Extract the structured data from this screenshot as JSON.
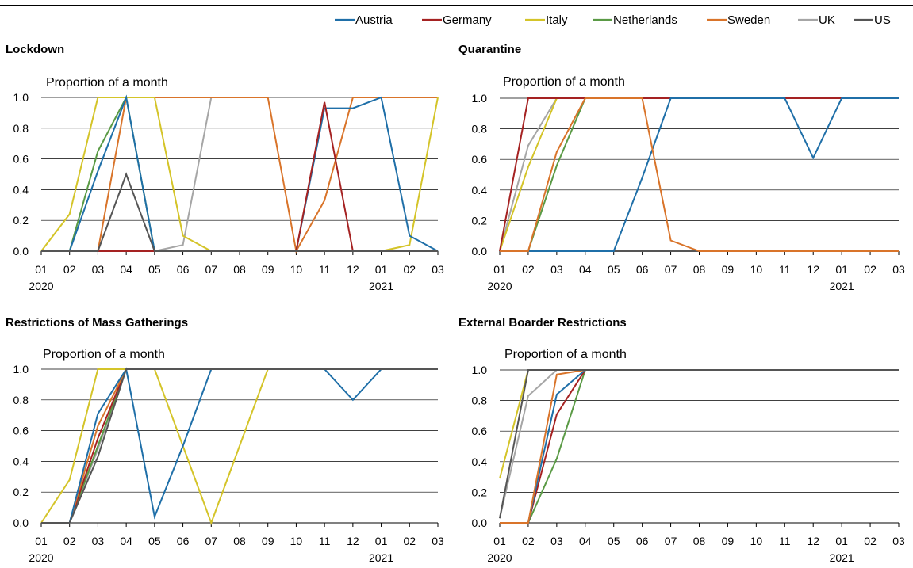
{
  "legend": [
    {
      "name": "Austria",
      "color": "#1f6fa8"
    },
    {
      "name": "Germany",
      "color": "#a52222"
    },
    {
      "name": "Italy",
      "color": "#d4c429"
    },
    {
      "name": "Netherlands",
      "color": "#5a9a45"
    },
    {
      "name": "Sweden",
      "color": "#d9742a"
    },
    {
      "name": "UK",
      "color": "#a6a6a6"
    },
    {
      "name": "US",
      "color": "#555555"
    }
  ],
  "chart_data": [
    {
      "type": "line",
      "title": "Lockdown",
      "ylabel": "Proportion  of a month",
      "categories": [
        "01",
        "02",
        "03",
        "04",
        "05",
        "06",
        "07",
        "08",
        "09",
        "10",
        "11",
        "12",
        "01",
        "02",
        "03"
      ],
      "year_labels": [
        {
          "index": 0,
          "label": "2020"
        },
        {
          "index": 12,
          "label": "2021"
        }
      ],
      "ylim": [
        0,
        1
      ],
      "yticks": [
        "0.0",
        "0.2",
        "0.4",
        "0.6",
        "0.8",
        "1.0"
      ],
      "series": [
        {
          "name": "UK",
          "values": [
            0,
            0,
            0,
            0,
            0,
            0.04,
            1,
            1,
            1,
            1,
            1,
            1,
            1,
            1,
            1
          ]
        },
        {
          "name": "Sweden",
          "values": [
            0,
            0,
            0,
            1,
            1,
            1,
            1,
            1,
            1,
            0,
            0.33,
            1,
            1,
            1,
            1
          ]
        },
        {
          "name": "Italy",
          "values": [
            0,
            0.24,
            1,
            1,
            1,
            0.1,
            0,
            0,
            0,
            0,
            0,
            0,
            0,
            0.04,
            1
          ]
        },
        {
          "name": "Netherlands",
          "values": [
            0,
            0,
            0.65,
            1,
            0,
            0,
            0,
            0,
            0,
            0,
            0,
            0,
            0,
            0,
            0
          ]
        },
        {
          "name": "Austria",
          "values": [
            0,
            0,
            0.52,
            1,
            0,
            0,
            0,
            0,
            0,
            0,
            0.93,
            0.93,
            1,
            0.1,
            0
          ]
        },
        {
          "name": "Germany",
          "values": [
            0,
            0,
            0,
            0,
            0,
            0,
            0,
            0,
            0,
            0,
            0.97,
            0,
            0,
            0,
            0
          ]
        },
        {
          "name": "US",
          "values": [
            0,
            0,
            0,
            0.5,
            0,
            0,
            0,
            0,
            0,
            0,
            0,
            0,
            0,
            0,
            0
          ]
        }
      ]
    },
    {
      "type": "line",
      "title": "Quarantine",
      "ylabel": "Proportion of a month",
      "categories": [
        "01",
        "02",
        "03",
        "04",
        "05",
        "06",
        "07",
        "08",
        "09",
        "10",
        "11",
        "12",
        "01",
        "02",
        "03"
      ],
      "year_labels": [
        {
          "index": 0,
          "label": "2020"
        },
        {
          "index": 12,
          "label": "2021"
        }
      ],
      "ylim": [
        0,
        1
      ],
      "yticks": [
        "0.0",
        "0.2",
        "0.4",
        "0.6",
        "0.8",
        "1.0"
      ],
      "series": [
        {
          "name": "US",
          "values": [
            0,
            0,
            0,
            0,
            0,
            0,
            0,
            0,
            0,
            0,
            0,
            0,
            0,
            0,
            0
          ]
        },
        {
          "name": "UK",
          "values": [
            0,
            0.69,
            1,
            1,
            1,
            1,
            1,
            1,
            1,
            1,
            1,
            1,
            1,
            1,
            1
          ]
        },
        {
          "name": "Italy",
          "values": [
            0,
            0.55,
            1,
            1,
            1,
            1,
            1,
            1,
            1,
            1,
            1,
            1,
            1,
            1,
            1
          ]
        },
        {
          "name": "Netherlands",
          "values": [
            0,
            0,
            0.56,
            1,
            1,
            1,
            1,
            1,
            1,
            1,
            1,
            1,
            1,
            1,
            1
          ]
        },
        {
          "name": "Germany",
          "values": [
            0,
            1,
            1,
            1,
            1,
            1,
            1,
            1,
            1,
            1,
            1,
            1,
            1,
            1,
            1
          ]
        },
        {
          "name": "Austria",
          "values": [
            0,
            0,
            0,
            0,
            0,
            0.48,
            1,
            1,
            1,
            1,
            1,
            0.61,
            1,
            1,
            1
          ]
        },
        {
          "name": "Sweden",
          "values": [
            0,
            0,
            0.65,
            1,
            1,
            1,
            0.07,
            0,
            0,
            0,
            0,
            0,
            0,
            0,
            0
          ]
        }
      ]
    },
    {
      "type": "line",
      "title": "Restrictions of Mass Gatherings",
      "ylabel": "Proportion of a month",
      "categories": [
        "01",
        "02",
        "03",
        "04",
        "05",
        "06",
        "07",
        "08",
        "09",
        "10",
        "11",
        "12",
        "01",
        "02",
        "03"
      ],
      "year_labels": [
        {
          "index": 0,
          "label": "2020"
        },
        {
          "index": 12,
          "label": "2021"
        }
      ],
      "ylim": [
        0,
        1
      ],
      "yticks": [
        "0.0",
        "0.2",
        "0.4",
        "0.6",
        "0.8",
        "1.0"
      ],
      "series": [
        {
          "name": "UK",
          "values": [
            0,
            0,
            0.48,
            1,
            1,
            1,
            1,
            1,
            1,
            1,
            1,
            1,
            1,
            1,
            1
          ]
        },
        {
          "name": "Netherlands",
          "values": [
            0,
            0,
            0.5,
            1,
            1,
            1,
            1,
            1,
            1,
            1,
            1,
            1,
            1,
            1,
            1
          ]
        },
        {
          "name": "Germany",
          "values": [
            0,
            0,
            0.55,
            1,
            1,
            1,
            1,
            1,
            1,
            1,
            1,
            1,
            1,
            1,
            1
          ]
        },
        {
          "name": "Sweden",
          "values": [
            0,
            0,
            0.63,
            1,
            1,
            1,
            1,
            1,
            1,
            1,
            1,
            1,
            1,
            1,
            1
          ]
        },
        {
          "name": "Italy",
          "values": [
            0,
            0.28,
            1,
            1,
            1,
            0.5,
            0,
            0.5,
            1,
            1,
            1,
            1,
            1,
            1,
            1
          ]
        },
        {
          "name": "Austria",
          "values": [
            0,
            0,
            0.71,
            1,
            0.04,
            0.5,
            1,
            1,
            1,
            1,
            1,
            0.8,
            1,
            1,
            1
          ]
        },
        {
          "name": "US",
          "values": [
            0,
            0,
            0.43,
            1,
            1,
            1,
            1,
            1,
            1,
            1,
            1,
            1,
            1,
            1,
            1
          ]
        }
      ]
    },
    {
      "type": "line",
      "title": "External Boarder Restrictions",
      "ylabel": "Proportion of a month",
      "categories": [
        "01",
        "02",
        "03",
        "04",
        "05",
        "06",
        "07",
        "08",
        "09",
        "10",
        "11",
        "12",
        "01",
        "02",
        "03"
      ],
      "year_labels": [
        {
          "index": 0,
          "label": "2020"
        },
        {
          "index": 12,
          "label": "2021"
        }
      ],
      "ylim": [
        0,
        1
      ],
      "yticks": [
        "0.0",
        "0.2",
        "0.4",
        "0.6",
        "0.8",
        "1.0"
      ],
      "series": [
        {
          "name": "Italy",
          "values": [
            0.29,
            1,
            1,
            1,
            1,
            1,
            1,
            1,
            1,
            1,
            1,
            1,
            1,
            1,
            1
          ]
        },
        {
          "name": "UK",
          "values": [
            0.03,
            0.83,
            1,
            1,
            1,
            1,
            1,
            1,
            1,
            1,
            1,
            1,
            1,
            1,
            1
          ]
        },
        {
          "name": "Netherlands",
          "values": [
            0,
            0,
            0.42,
            1,
            1,
            1,
            1,
            1,
            1,
            1,
            1,
            1,
            1,
            1,
            1
          ]
        },
        {
          "name": "Germany",
          "values": [
            0,
            0,
            0.71,
            1,
            1,
            1,
            1,
            1,
            1,
            1,
            1,
            1,
            1,
            1,
            1
          ]
        },
        {
          "name": "Austria",
          "values": [
            0,
            0,
            0.84,
            1,
            1,
            1,
            1,
            1,
            1,
            1,
            1,
            1,
            1,
            1,
            1
          ]
        },
        {
          "name": "Sweden",
          "values": [
            0,
            0,
            0.97,
            1,
            1,
            1,
            1,
            1,
            1,
            1,
            1,
            1,
            1,
            1,
            1
          ]
        },
        {
          "name": "US",
          "values": [
            0.03,
            1,
            1,
            1,
            1,
            1,
            1,
            1,
            1,
            1,
            1,
            1,
            1,
            1,
            1
          ]
        }
      ]
    }
  ]
}
